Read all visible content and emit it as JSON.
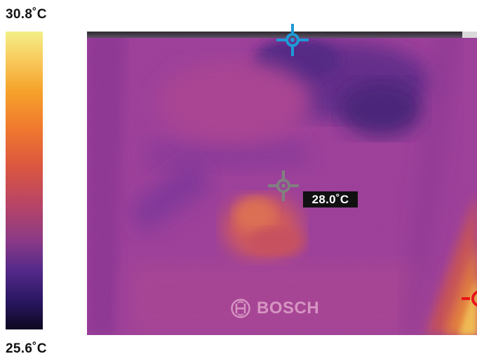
{
  "scale": {
    "max_label": "30.8˚C",
    "min_label": "25.6˚C",
    "gradient_colors": [
      "#f4ef88",
      "#f6a22a",
      "#dc573f",
      "#8b3a86",
      "#2b1764",
      "#0d0820"
    ]
  },
  "center_spot": {
    "readout": "28.0˚C",
    "marker_color": "#808080"
  },
  "cold_spot": {
    "marker_color": "#1e9ad6"
  },
  "hot_spot": {
    "marker_color": "#e8141a"
  },
  "watermark": {
    "brand": "BOSCH",
    "logo_icon": "bosch-armature-icon"
  }
}
